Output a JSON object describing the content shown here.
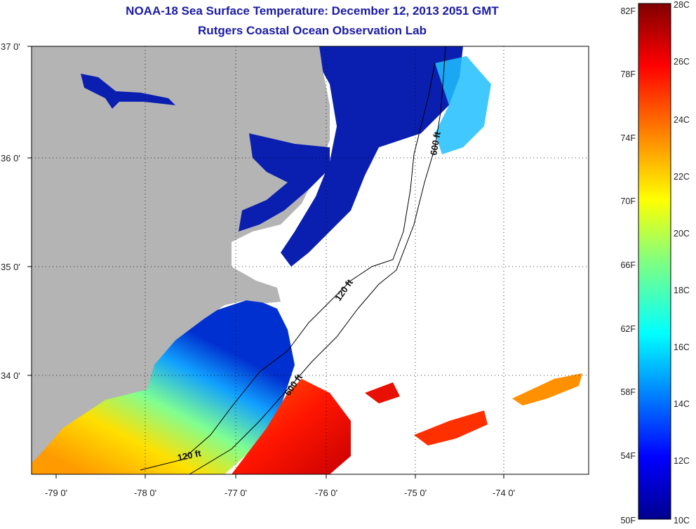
{
  "title": {
    "line1": "NOAA-18 Sea Surface Temperature:  December 12, 2013 2051 GMT",
    "line2": "Rutgers Coastal Ocean Observation Lab"
  },
  "map": {
    "lon_labels": [
      "-79 0'",
      "-78 0'",
      "-77 0'",
      "-76 0'",
      "-75 0'",
      "-74 0'"
    ],
    "lat_labels": [
      "37 0'",
      "36 0'",
      "35 0'",
      "34 0'"
    ],
    "contour_labels": [
      "120 ft",
      "600 ft",
      "120 ft",
      "600 ft"
    ],
    "colors": {
      "land": "#b4b4b4",
      "water_bg": "#ffffff",
      "frame": "#000000"
    }
  },
  "colorbar": {
    "fahrenheit_labels": [
      "82F",
      "78F",
      "74F",
      "70F",
      "66F",
      "62F",
      "58F",
      "54F",
      "50F"
    ],
    "celsius_labels": [
      "28C",
      "26C",
      "24C",
      "22C",
      "20C",
      "18C",
      "16C",
      "14C",
      "12C",
      "10C"
    ],
    "colors": [
      "#00008f",
      "#0000ff",
      "#0080ff",
      "#00ffff",
      "#80ff80",
      "#ffff00",
      "#ff8000",
      "#ff0000",
      "#800000"
    ]
  }
}
